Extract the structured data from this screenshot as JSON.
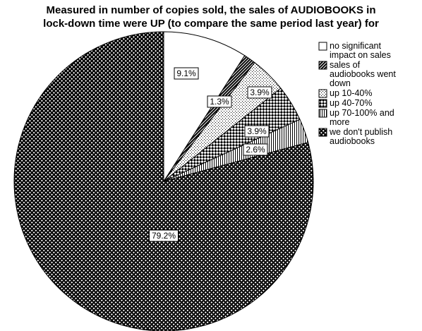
{
  "chart_data": {
    "type": "pie",
    "title_lines": [
      "Measured in number of copies sold, the sales of AUDIOBOOKS in",
      "lock-down time were UP (to compare the same period last year) for"
    ],
    "slices": [
      {
        "label_lines": [
          "no significant",
          "impact on sales"
        ],
        "value": 9.1,
        "data_label": "9.1%",
        "pattern": "white"
      },
      {
        "label_lines": [
          "sales of",
          "audiobooks went",
          "down"
        ],
        "value": 1.3,
        "data_label": "1.3%",
        "pattern": "diagonal-dense"
      },
      {
        "label_lines": [
          "up 10-40%"
        ],
        "value": 3.9,
        "data_label": "3.9%",
        "pattern": "dots"
      },
      {
        "label_lines": [
          "up 40-70%"
        ],
        "value": 3.9,
        "data_label": "3.9%",
        "pattern": "checker"
      },
      {
        "label_lines": [
          "up 70-100% and",
          "more"
        ],
        "value": 2.6,
        "data_label": "2.6%",
        "pattern": "vertical-lines"
      },
      {
        "label_lines": [
          "we don't publish",
          "audiobooks"
        ],
        "value": 79.2,
        "data_label": "79.2%",
        "pattern": "crosshatch"
      }
    ]
  },
  "colors": {
    "stroke": "#000000",
    "background": "#ffffff",
    "fill": "#000000"
  }
}
